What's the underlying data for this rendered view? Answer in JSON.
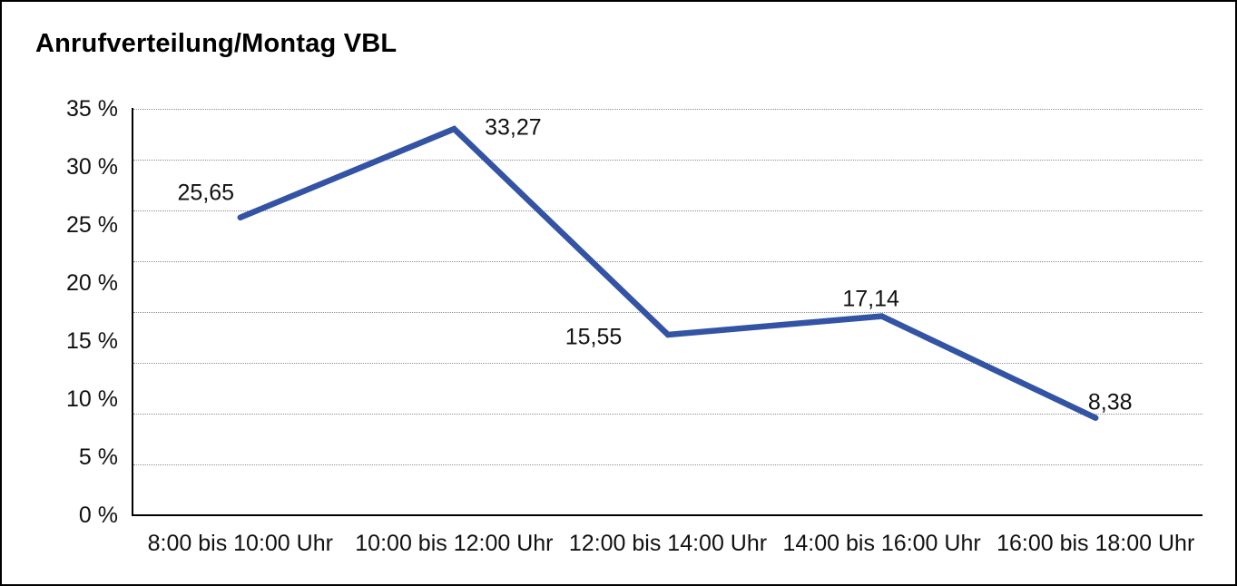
{
  "title": "Anrufverteilung/Montag VBL",
  "colors": {
    "line": "#3353A4",
    "grid": "#8f8f8f",
    "axis": "#000000",
    "text": "#111111",
    "background": "#ffffff"
  },
  "chart_data": {
    "type": "line",
    "title": "Anrufverteilung/Montag VBL",
    "categories": [
      "8:00 bis 10:00 Uhr",
      "10:00 bis 12:00 Uhr",
      "12:00 bis 14:00 Uhr",
      "14:00 bis 16:00 Uhr",
      "16:00 bis 18:00 Uhr"
    ],
    "values": [
      25.65,
      33.27,
      15.55,
      17.14,
      8.38
    ],
    "point_labels": [
      "25,65",
      "33,27",
      "15,55",
      "17,14",
      "8,38"
    ],
    "y_tick_labels": [
      "35 %",
      "30 %",
      "25 %",
      "20 %",
      "15 %",
      "10 %",
      "5 %",
      "0 %"
    ],
    "ylim": [
      0,
      35
    ],
    "y_tick_step": 5,
    "unit": "%",
    "xlabel": "",
    "ylabel": "",
    "grid": true,
    "legend": false
  }
}
